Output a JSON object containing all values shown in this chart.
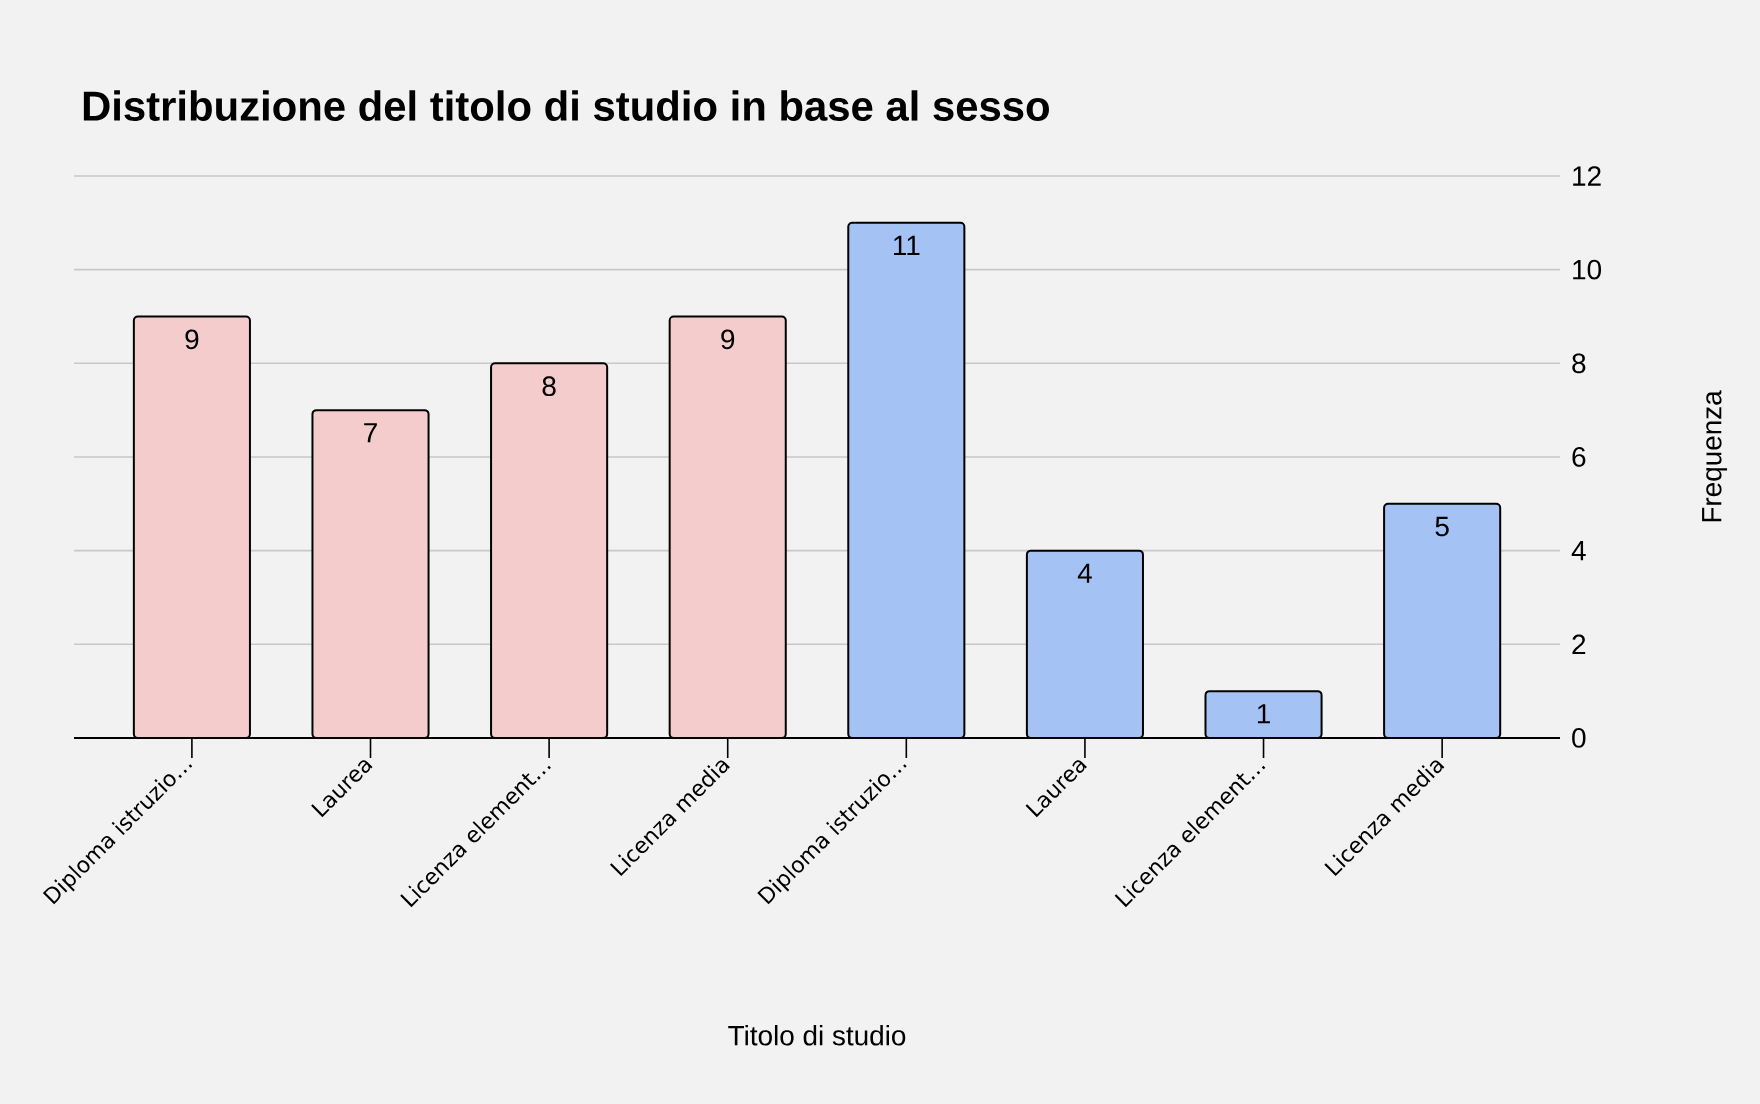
{
  "chart_data": {
    "type": "bar",
    "title": "Distribuzione del titolo di studio in base al sesso",
    "xlabel": "Titolo di studio",
    "ylabel": "Frequenza",
    "categories": [
      "Diploma istruzio…",
      "Laurea",
      "Licenza element…",
      "Licenza media",
      "Diploma istruzio…",
      "Laurea",
      "Licenza element…",
      "Licenza media"
    ],
    "values": [
      9,
      7,
      8,
      9,
      11,
      4,
      1,
      5
    ],
    "colors": [
      "#f4cccc",
      "#f4cccc",
      "#f4cccc",
      "#f4cccc",
      "#a4c2f4",
      "#a4c2f4",
      "#a4c2f4",
      "#a4c2f4"
    ],
    "ylim": [
      0,
      12
    ],
    "yticks": [
      0,
      2,
      4,
      6,
      8,
      10,
      12
    ],
    "grid": "y",
    "data_labels": true
  }
}
